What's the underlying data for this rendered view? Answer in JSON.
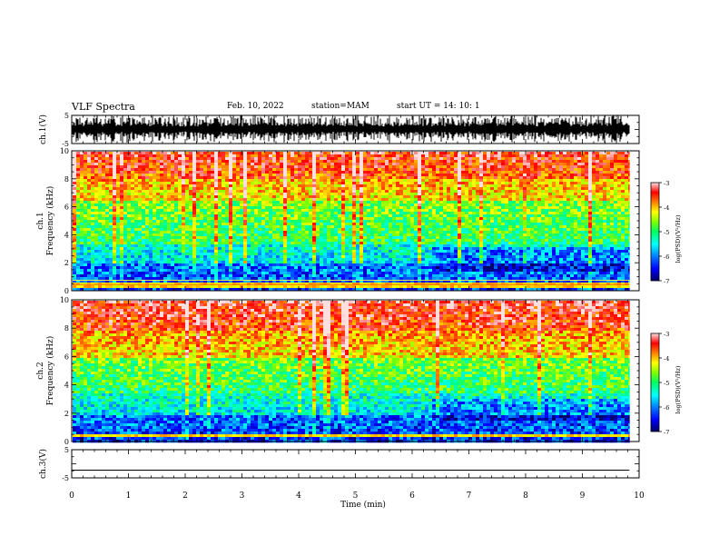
{
  "header": {
    "title": "VLF Spectra",
    "date": "Feb. 10, 2022",
    "station": "station=MAM",
    "start": "start  UT =   14: 10: 1"
  },
  "chart_data": [
    {
      "type": "line",
      "panel": "waveform-ch1",
      "ylabel": "ch.1(V)",
      "ylim": [
        -5,
        5
      ],
      "yticks": [
        "5",
        "-5"
      ],
      "xlim": [
        0,
        10
      ],
      "description_values": {
        "amplitude_range": [
          -5,
          5
        ]
      }
    },
    {
      "type": "heatmap",
      "panel": "spectrogram-ch1",
      "ylabel": "ch.1\nFrequency (kHz)",
      "ylim": [
        0,
        10
      ],
      "yticks": [
        "0",
        "2",
        "4",
        "6",
        "8",
        "10"
      ],
      "xlim": [
        0,
        10
      ],
      "colorbar": {
        "label": "log(PSD)(V²/Hz)",
        "range": [
          -7,
          -3
        ],
        "ticks": [
          "-3",
          "-4",
          "-5",
          "-6",
          "-7"
        ]
      },
      "bands": [
        {
          "freq_kHz": [
            0,
            2
          ],
          "level": -6.3
        },
        {
          "freq_kHz": [
            2,
            3.5
          ],
          "level": -5.6
        },
        {
          "freq_kHz": [
            3.5,
            6.5
          ],
          "level": -5.0
        },
        {
          "freq_kHz": [
            6.5,
            8
          ],
          "level": -4.2
        },
        {
          "freq_kHz": [
            8,
            10
          ],
          "level": -3.6
        }
      ]
    },
    {
      "type": "heatmap",
      "panel": "spectrogram-ch2",
      "ylabel": "ch.2\nFrequency (kHz)",
      "ylim": [
        0,
        10
      ],
      "yticks": [
        "0",
        "2",
        "4",
        "6",
        "8",
        "10"
      ],
      "xlim": [
        0,
        10
      ],
      "colorbar": {
        "label": "log(PSD)(V²/Hz)",
        "range": [
          -7,
          -3
        ],
        "ticks": [
          "-3",
          "-4",
          "-5",
          "-6",
          "-7"
        ]
      },
      "bands": [
        {
          "freq_kHz": [
            0,
            2
          ],
          "level": -6.4
        },
        {
          "freq_kHz": [
            2,
            3.5
          ],
          "level": -5.5
        },
        {
          "freq_kHz": [
            3.5,
            6
          ],
          "level": -5.0
        },
        {
          "freq_kHz": [
            6,
            8
          ],
          "level": -4.0
        },
        {
          "freq_kHz": [
            8,
            10
          ],
          "level": -3.4
        }
      ]
    },
    {
      "type": "line",
      "panel": "waveform-ch3",
      "ylabel": "ch.3(V)",
      "ylim": [
        -5,
        5
      ],
      "yticks": [
        "5",
        "-5"
      ],
      "xlim": [
        0,
        10
      ],
      "xlabel": "Time (min)",
      "xticks": [
        "0",
        "1",
        "2",
        "3",
        "4",
        "5",
        "6",
        "7",
        "8",
        "9",
        "10"
      ],
      "series": [
        {
          "x": [
            0,
            9.83
          ],
          "y": [
            0,
            0
          ]
        }
      ]
    }
  ],
  "colors": {
    "colormap": [
      "#000066",
      "#0000ff",
      "#0080ff",
      "#00ffff",
      "#00ff80",
      "#80ff00",
      "#ffff00",
      "#ff8000",
      "#ff0000",
      "#ffe0e0"
    ],
    "line": "#000000",
    "background": "#ffffff"
  }
}
